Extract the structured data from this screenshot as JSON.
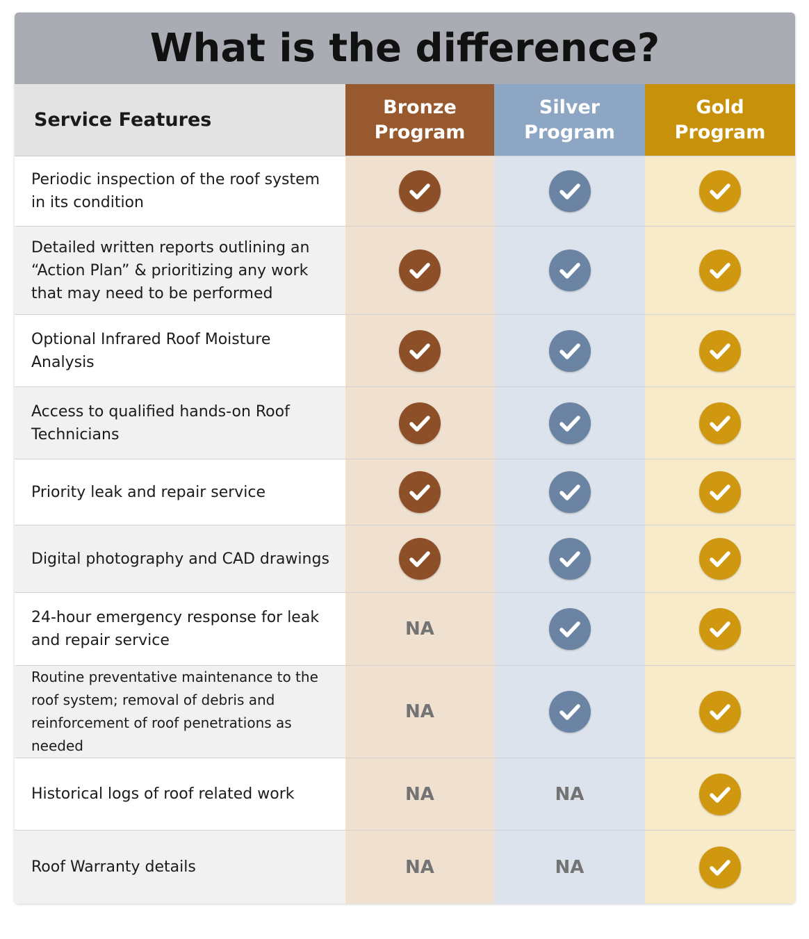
{
  "title": "What is the difference?",
  "header": {
    "feature_label": "Service Features",
    "programs": [
      {
        "line1": "Bronze",
        "line2": "Program"
      },
      {
        "line1": "Silver",
        "line2": "Program"
      },
      {
        "line1": "Gold",
        "line2": "Program"
      }
    ]
  },
  "colors": {
    "title_bar": "#a9adb3",
    "bronze": "#98592f",
    "silver": "#8da6c4",
    "gold": "#c8910b"
  },
  "na_label": "NA",
  "icons": {
    "included": "check-circle-icon"
  },
  "rows": [
    {
      "feature": "Periodic inspection of the roof system in its condition",
      "bronze": true,
      "silver": true,
      "gold": true
    },
    {
      "feature": "Detailed written reports outlining an “Action Plan” & prioritizing any work that may need to be performed",
      "bronze": true,
      "silver": true,
      "gold": true
    },
    {
      "feature": "Optional Infrared Roof Moisture Analysis",
      "bronze": true,
      "silver": true,
      "gold": true
    },
    {
      "feature": "Access to qualified hands-on Roof Technicians",
      "bronze": true,
      "silver": true,
      "gold": true
    },
    {
      "feature": "Priority leak and repair service",
      "bronze": true,
      "silver": true,
      "gold": true
    },
    {
      "feature": "Digital photography and CAD drawings",
      "bronze": true,
      "silver": true,
      "gold": true
    },
    {
      "feature": "24-hour emergency response for leak and repair service",
      "bronze": false,
      "silver": true,
      "gold": true
    },
    {
      "feature": "Routine preventative maintenance to the roof system; removal of debris and reinforcement of roof penetrations as needed",
      "bronze": false,
      "silver": true,
      "gold": true
    },
    {
      "feature": "Historical logs of roof related work",
      "bronze": false,
      "silver": false,
      "gold": true
    },
    {
      "feature": "Roof Warranty details",
      "bronze": false,
      "silver": false,
      "gold": true
    }
  ]
}
